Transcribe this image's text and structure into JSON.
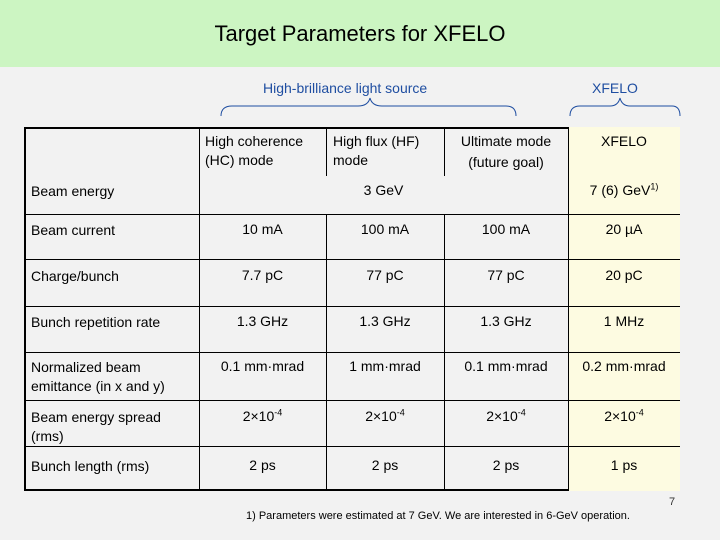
{
  "title": "Target Parameters for XFELO",
  "groups": {
    "light_source": "High-brilliance light source",
    "xfelo": "XFELO"
  },
  "headers": {
    "hc_line1": "High coherence",
    "hc_line2": "(HC) mode",
    "hf_line1": "High flux (HF)",
    "hf_line2": "mode",
    "um_line1": "Ultimate mode",
    "um_line2": "(future goal)",
    "xfelo": "XFELO"
  },
  "rows": [
    {
      "label1": "Beam energy",
      "label2": "",
      "hc": "3 GeV",
      "hf": "",
      "um": "",
      "xfelo": "7 (6) GeV",
      "xfelo_sup": "1)"
    },
    {
      "label1": "Beam current",
      "label2": "",
      "hc": "10 mA",
      "hf": "100 mA",
      "um": "100 mA",
      "xfelo": "20 µA",
      "xfelo_sup": ""
    },
    {
      "label1": "Charge/bunch",
      "label2": "",
      "hc": "7.7 pC",
      "hf": "77 pC",
      "um": "77 pC",
      "xfelo": "20 pC",
      "xfelo_sup": ""
    },
    {
      "label1": "Bunch repetition rate",
      "label2": "",
      "hc": "1.3 GHz",
      "hf": "1.3 GHz",
      "um": "1.3 GHz",
      "xfelo": "1 MHz",
      "xfelo_sup": ""
    },
    {
      "label1": "Normalized beam",
      "label2": "emittance (in x and y)",
      "hc": "0.1 mm·mrad",
      "hf": "1 mm·mrad",
      "um": "0.1 mm·mrad",
      "xfelo": "0.2 mm·mrad",
      "xfelo_sup": ""
    },
    {
      "label1": "Beam energy spread",
      "label2": "(rms)",
      "hc": "2×10",
      "hf": "2×10",
      "um": "2×10",
      "xfelo": "2×10",
      "sup": "-4"
    },
    {
      "label1": "Bunch length (rms)",
      "label2": "",
      "hc": "2 ps",
      "hf": "2 ps",
      "um": "2 ps",
      "xfelo": "1 ps",
      "xfelo_sup": ""
    }
  ],
  "footnote": "1) Parameters were estimated at 7 GeV. We are interested in 6-GeV operation.",
  "page_number": "7"
}
